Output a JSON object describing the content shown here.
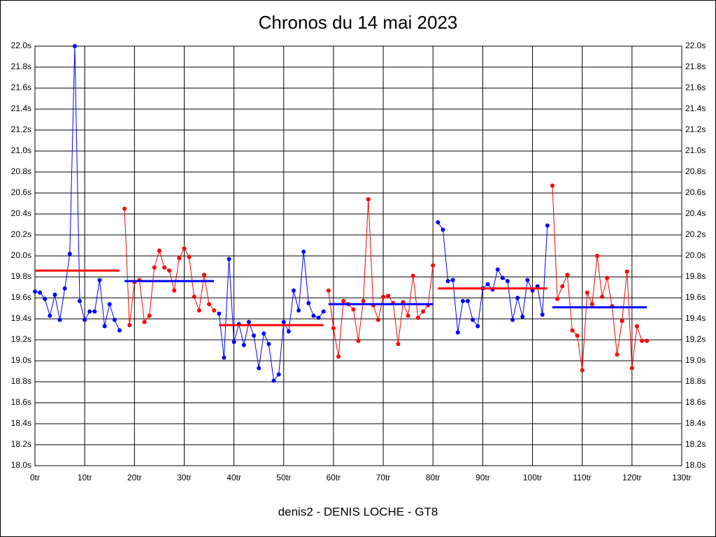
{
  "chart_data": {
    "type": "line",
    "title": "Chronos du 14 mai 2023",
    "x_label": "denis2 - DENIS LOCHE - GT8",
    "grid": true,
    "xlim": [
      0,
      130
    ],
    "ylim": [
      18.0,
      22.0
    ],
    "xticks": [
      {
        "value": 0,
        "label": "0tr"
      },
      {
        "value": 10,
        "label": "10tr"
      },
      {
        "value": 20,
        "label": "20tr"
      },
      {
        "value": 30,
        "label": "30tr"
      },
      {
        "value": 40,
        "label": "40tr"
      },
      {
        "value": 50,
        "label": "50tr"
      },
      {
        "value": 60,
        "label": "60tr"
      },
      {
        "value": 70,
        "label": "70tr"
      },
      {
        "value": 80,
        "label": "80tr"
      },
      {
        "value": 90,
        "label": "90tr"
      },
      {
        "value": 100,
        "label": "100tr"
      },
      {
        "value": 110,
        "label": "110tr"
      },
      {
        "value": 120,
        "label": "120tr"
      },
      {
        "value": 130,
        "label": "130tr"
      }
    ],
    "yticks": [
      {
        "value": 18.0,
        "label": "18.0s"
      },
      {
        "value": 18.2,
        "label": "18.2s"
      },
      {
        "value": 18.4,
        "label": "18.4s"
      },
      {
        "value": 18.6,
        "label": "18.6s"
      },
      {
        "value": 18.8,
        "label": "18.8s"
      },
      {
        "value": 19.0,
        "label": "19.0s"
      },
      {
        "value": 19.2,
        "label": "19.2s"
      },
      {
        "value": 19.4,
        "label": "19.4s"
      },
      {
        "value": 19.6,
        "label": "19.6s"
      },
      {
        "value": 19.8,
        "label": "19.8s"
      },
      {
        "value": 20.0,
        "label": "20.0s"
      },
      {
        "value": 20.2,
        "label": "20.2s"
      },
      {
        "value": 20.4,
        "label": "20.4s"
      },
      {
        "value": 20.6,
        "label": "20.6s"
      },
      {
        "value": 20.8,
        "label": "20.8s"
      },
      {
        "value": 21.0,
        "label": "21.0s"
      },
      {
        "value": 21.2,
        "label": "21.2s"
      },
      {
        "value": 21.4,
        "label": "21.4s"
      },
      {
        "value": 21.6,
        "label": "21.6s"
      },
      {
        "value": 21.8,
        "label": "21.8s"
      },
      {
        "value": 22.0,
        "label": "22.0s"
      }
    ],
    "series": [
      {
        "color": "#0000ff",
        "x": [
          0,
          1,
          2,
          3,
          4,
          5,
          6,
          7,
          8,
          9,
          10,
          11,
          12,
          13,
          14,
          15,
          16,
          17
        ],
        "values": [
          19.66,
          19.65,
          19.59,
          19.43,
          19.63,
          19.39,
          19.69,
          20.02,
          22.0,
          19.57,
          19.39,
          19.47,
          19.47,
          19.77,
          19.33,
          19.54,
          19.39,
          19.29
        ]
      },
      {
        "color": "#ff0000",
        "x": [
          18,
          19,
          20,
          21,
          22,
          23,
          24,
          25,
          26,
          27,
          28,
          29,
          30,
          31,
          32,
          33,
          34,
          35,
          36
        ],
        "values": [
          20.45,
          19.34,
          19.75,
          19.77,
          19.37,
          19.43,
          19.89,
          20.05,
          19.89,
          19.86,
          19.67,
          19.98,
          20.07,
          19.99,
          19.61,
          19.48,
          19.82,
          19.54,
          19.48
        ]
      },
      {
        "color": "#0000ff",
        "x": [
          37,
          38,
          39,
          40,
          41,
          42,
          43,
          44,
          45,
          46,
          47,
          48,
          49,
          50,
          51,
          52,
          53,
          54,
          55,
          56,
          57,
          58
        ],
        "values": [
          19.45,
          19.03,
          19.97,
          19.18,
          19.35,
          19.15,
          19.37,
          19.24,
          18.93,
          19.26,
          19.16,
          18.81,
          18.87,
          19.37,
          19.28,
          19.67,
          19.48,
          20.04,
          19.55,
          19.43,
          19.41,
          19.47
        ]
      },
      {
        "color": "#ff0000",
        "x": [
          59,
          60,
          61,
          62,
          63,
          64,
          65,
          66,
          67,
          68,
          69,
          70,
          71,
          72,
          73,
          74,
          75,
          76,
          77,
          78,
          79,
          80
        ],
        "values": [
          19.67,
          19.31,
          19.04,
          19.57,
          19.54,
          19.49,
          19.19,
          19.57,
          20.54,
          19.53,
          19.39,
          19.61,
          19.62,
          19.55,
          19.16,
          19.56,
          19.43,
          19.81,
          19.41,
          19.47,
          19.53,
          19.91
        ]
      },
      {
        "color": "#0000ff",
        "x": [
          81,
          82,
          83,
          84,
          85,
          86,
          87,
          88,
          89,
          90,
          91,
          92,
          93,
          94,
          95,
          96,
          97,
          98,
          99,
          100,
          101,
          102,
          103
        ],
        "values": [
          20.32,
          20.25,
          19.76,
          19.77,
          19.27,
          19.57,
          19.57,
          19.39,
          19.33,
          19.69,
          19.73,
          19.68,
          19.87,
          19.79,
          19.76,
          19.39,
          19.6,
          19.42,
          19.77,
          19.67,
          19.71,
          19.44,
          20.29
        ]
      },
      {
        "color": "#ff0000",
        "x": [
          104,
          105,
          106,
          107,
          108,
          109,
          110,
          111,
          112,
          113,
          114,
          115,
          116,
          117,
          118,
          119,
          120,
          121,
          122,
          123
        ],
        "values": [
          20.67,
          19.59,
          19.71,
          19.82,
          19.29,
          19.24,
          18.91,
          19.65,
          19.54,
          20.0,
          19.61,
          19.79,
          19.52,
          19.06,
          19.38,
          19.85,
          18.93,
          19.33,
          19.19,
          19.19
        ]
      }
    ],
    "averages": [
      {
        "color": "#ff0000",
        "x": [
          0,
          17
        ],
        "value": 19.86
      },
      {
        "color": "#0000ff",
        "x": [
          18,
          36
        ],
        "value": 19.76
      },
      {
        "color": "#ff0000",
        "x": [
          37,
          58
        ],
        "value": 19.34
      },
      {
        "color": "#0000ff",
        "x": [
          59,
          80
        ],
        "value": 19.54
      },
      {
        "color": "#ff0000",
        "x": [
          81,
          103
        ],
        "value": 19.69
      },
      {
        "color": "#0000ff",
        "x": [
          104,
          123
        ],
        "value": 19.51
      }
    ]
  }
}
